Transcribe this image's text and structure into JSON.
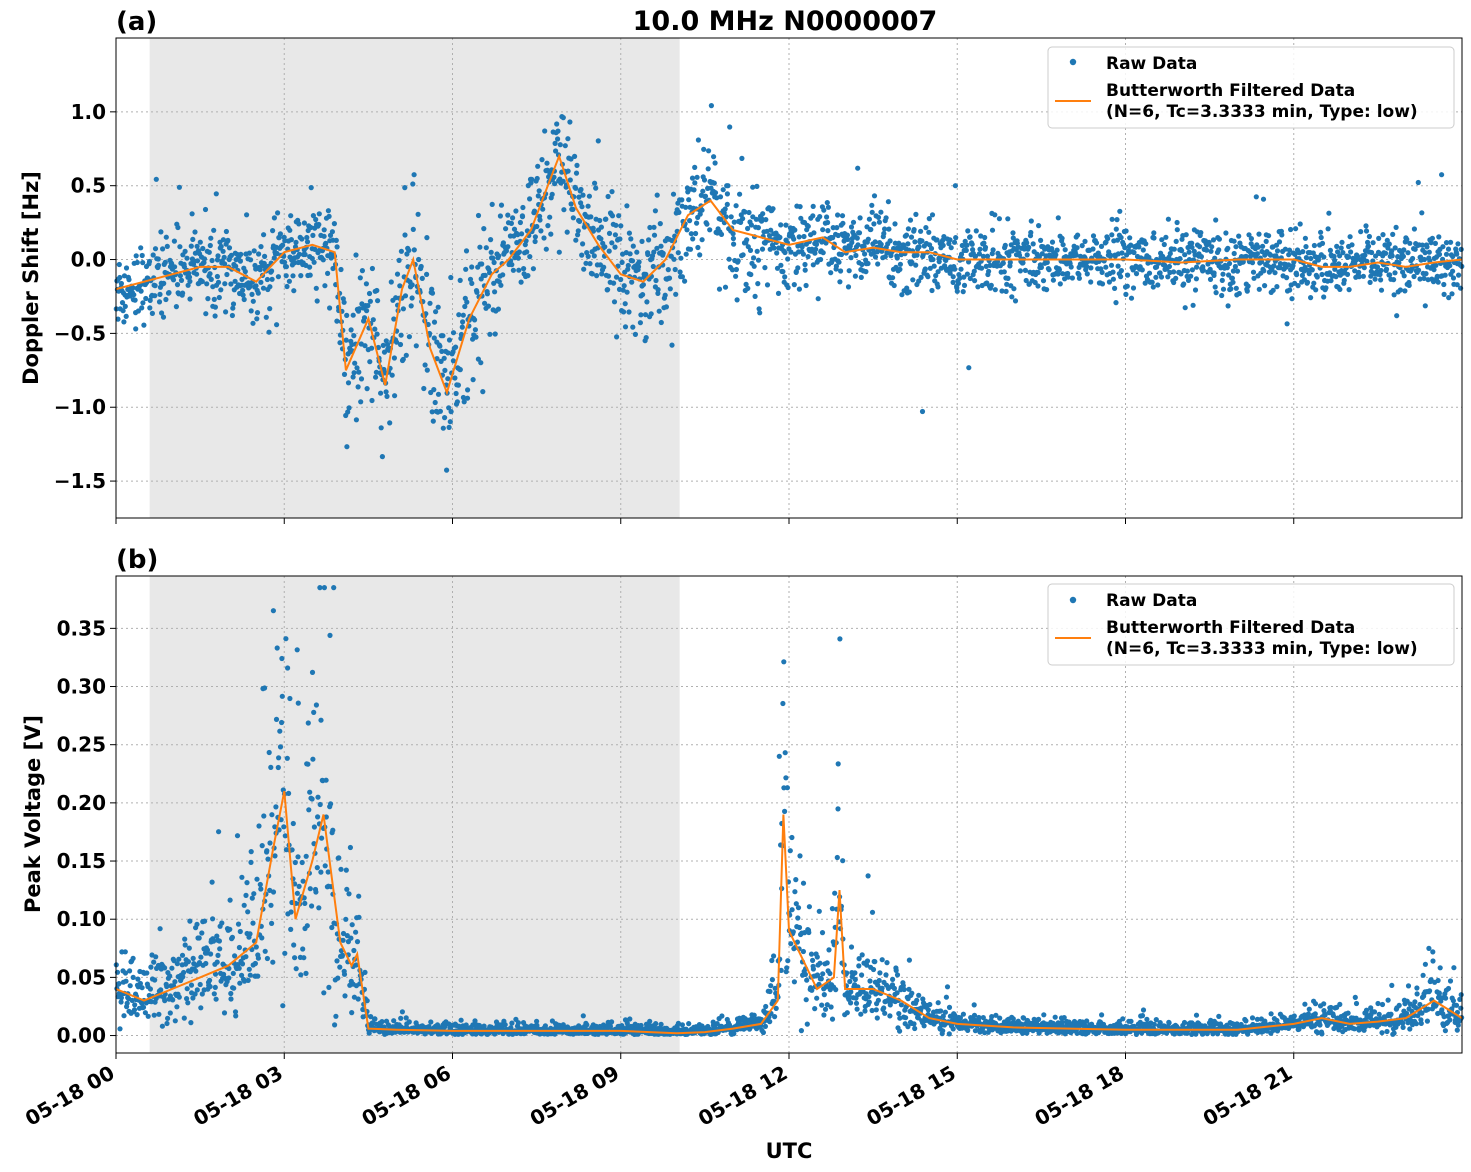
{
  "figure": {
    "title": "10.0 MHz N0000007",
    "xlabel": "UTC",
    "xticks": [
      "05-18 00",
      "05-18 03",
      "05-18 06",
      "05-18 09",
      "05-18 12",
      "05-18 15",
      "05-18 18",
      "05-18 21"
    ],
    "colors": {
      "raw": "#1f77b4",
      "filtered": "#ff7f0e",
      "shade": "#e8e8e8",
      "grid": "#b0b0b0"
    }
  },
  "chart_data": [
    {
      "type": "scatter",
      "panel_label": "(a)",
      "ylabel": "Doppler Shift [Hz]",
      "xunit": "hours UTC since 05-18 00",
      "xlim": [
        0,
        24
      ],
      "ylim": [
        -1.75,
        1.5
      ],
      "yticks": [
        1.0,
        0.5,
        0.0,
        -0.5,
        -1.0,
        -1.5
      ],
      "ytick_labels": [
        "1.0",
        "0.5",
        "0.0",
        "−0.5",
        "−1.0",
        "−1.5"
      ],
      "grid": true,
      "shaded_x_range": [
        0.6,
        10.05
      ],
      "legend": {
        "position": "top-right",
        "raw_label": "Raw Data",
        "filtered_label_1": "Butterworth Filtered Data",
        "filtered_label_2": "(N=6, Tc=3.3333 min, Type: low)"
      },
      "series": [
        {
          "name": "Butterworth Filtered Data (N=6, Tc=3.3333 min, Type: low)",
          "x": [
            0,
            0.5,
            1.0,
            1.5,
            2.0,
            2.5,
            3.0,
            3.5,
            3.9,
            4.1,
            4.5,
            4.8,
            5.1,
            5.3,
            5.6,
            5.9,
            6.3,
            6.7,
            7.0,
            7.4,
            7.7,
            7.9,
            8.2,
            8.6,
            9.0,
            9.4,
            9.8,
            10.2,
            10.6,
            11.0,
            11.5,
            12.0,
            12.6,
            13.0,
            13.5,
            14.0,
            14.5,
            15.0,
            16.0,
            17.0,
            18.0,
            19.0,
            20.0,
            21.0,
            21.5,
            22.0,
            22.5,
            23.0,
            23.5,
            24.0
          ],
          "y": [
            -0.2,
            -0.15,
            -0.1,
            -0.05,
            -0.05,
            -0.15,
            0.05,
            0.1,
            0.05,
            -0.75,
            -0.4,
            -0.85,
            -0.2,
            0.0,
            -0.6,
            -0.9,
            -0.4,
            -0.1,
            0.0,
            0.2,
            0.5,
            0.7,
            0.35,
            0.1,
            -0.1,
            -0.15,
            0.0,
            0.3,
            0.4,
            0.2,
            0.15,
            0.1,
            0.15,
            0.05,
            0.08,
            0.05,
            0.05,
            0.0,
            0.0,
            0.0,
            0.0,
            -0.02,
            0.0,
            0.0,
            -0.05,
            -0.05,
            -0.02,
            -0.05,
            -0.02,
            0.0
          ]
        }
      ]
    },
    {
      "type": "scatter",
      "panel_label": "(b)",
      "ylabel": "Peak Voltage [V]",
      "xunit": "hours UTC since 05-18 00",
      "xlim": [
        0,
        24
      ],
      "ylim": [
        -0.015,
        0.395
      ],
      "yticks": [
        0.35,
        0.3,
        0.25,
        0.2,
        0.15,
        0.1,
        0.05,
        0.0
      ],
      "ytick_labels": [
        "0.35",
        "0.30",
        "0.25",
        "0.20",
        "0.15",
        "0.10",
        "0.05",
        "0.00"
      ],
      "grid": true,
      "shaded_x_range": [
        0.6,
        10.05
      ],
      "legend": {
        "position": "top-right",
        "raw_label": "Raw Data",
        "filtered_label_1": "Butterworth Filtered Data",
        "filtered_label_2": "(N=6, Tc=3.3333 min, Type: low)"
      },
      "series": [
        {
          "name": "Butterworth Filtered Data (N=6, Tc=3.3333 min, Type: low)",
          "x": [
            0,
            0.5,
            1.0,
            1.5,
            2.0,
            2.5,
            2.8,
            3.0,
            3.2,
            3.5,
            3.7,
            4.0,
            4.2,
            4.3,
            4.5,
            5.0,
            6.0,
            7.0,
            8.0,
            9.0,
            10.0,
            10.5,
            11.0,
            11.5,
            11.8,
            11.9,
            12.0,
            12.2,
            12.5,
            12.8,
            12.9,
            13.0,
            13.5,
            14.0,
            14.5,
            15.0,
            16.0,
            17.0,
            18.0,
            19.0,
            20.0,
            21.0,
            21.5,
            22.0,
            22.5,
            23.0,
            23.5,
            24.0
          ],
          "y": [
            0.04,
            0.03,
            0.04,
            0.05,
            0.06,
            0.08,
            0.16,
            0.21,
            0.1,
            0.15,
            0.19,
            0.08,
            0.06,
            0.07,
            0.006,
            0.005,
            0.004,
            0.004,
            0.004,
            0.004,
            0.002,
            0.003,
            0.006,
            0.01,
            0.03,
            0.19,
            0.09,
            0.07,
            0.04,
            0.05,
            0.125,
            0.04,
            0.04,
            0.03,
            0.015,
            0.01,
            0.007,
            0.006,
            0.005,
            0.005,
            0.005,
            0.01,
            0.015,
            0.01,
            0.012,
            0.015,
            0.03,
            0.015
          ]
        }
      ]
    }
  ]
}
